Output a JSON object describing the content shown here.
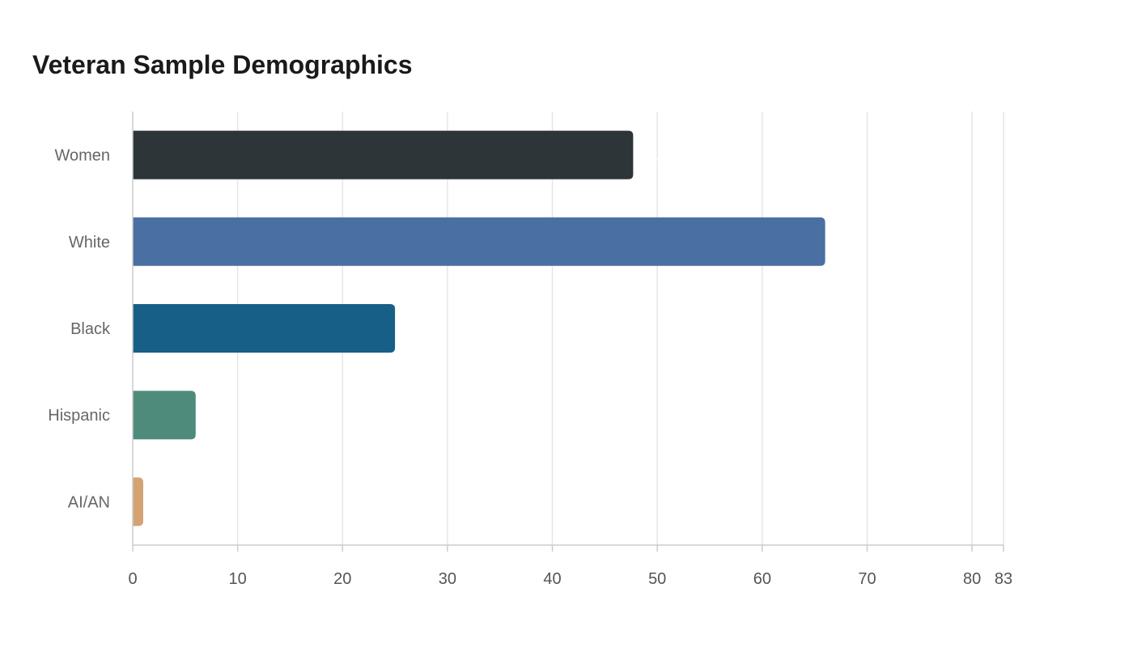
{
  "chart_data": {
    "type": "bar",
    "orientation": "horizontal",
    "title": "Veteran Sample Demographics",
    "xlabel": "",
    "ylabel": "",
    "categories": [
      "Women",
      "White",
      "Black",
      "Hispanic",
      "AI/AN"
    ],
    "values": [
      47.7,
      66.0,
      25.0,
      6.0,
      1.0
    ],
    "colors": [
      "#2e3538",
      "#4a6fa3",
      "#175f87",
      "#4e8b7b",
      "#d4a373"
    ],
    "xlim": [
      0,
      83
    ],
    "xticks": [
      0,
      10,
      20,
      30,
      40,
      50,
      60,
      70,
      80,
      83
    ],
    "grid": true,
    "legend": "none"
  }
}
